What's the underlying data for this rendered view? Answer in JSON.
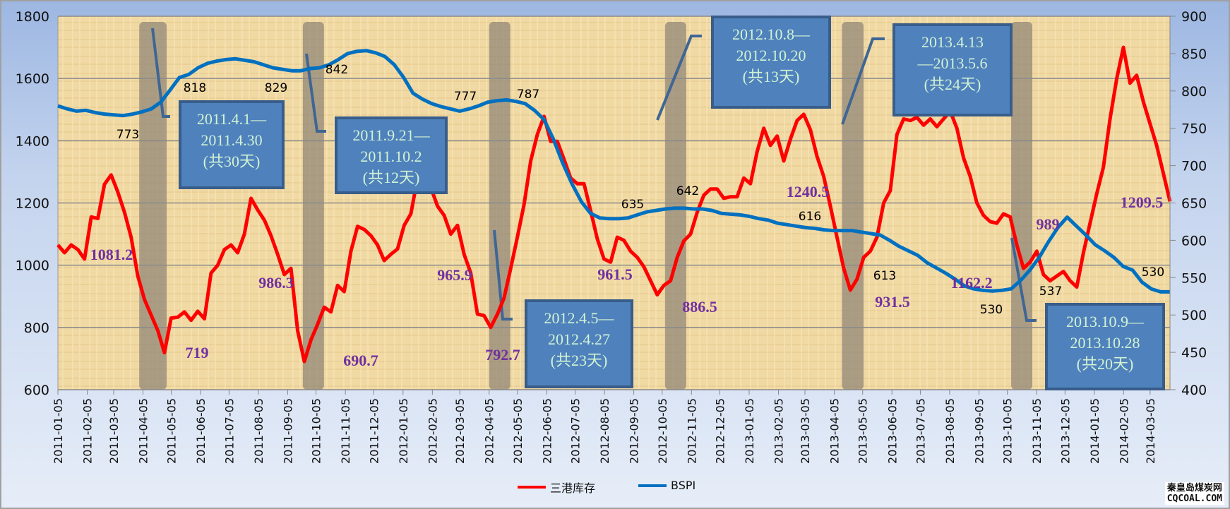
{
  "chart_data": {
    "type": "line",
    "title": "",
    "x_range": [
      "2011-01-05",
      "2014-03-26"
    ],
    "x_tick_labels": [
      "2011-01-05",
      "2011-02-05",
      "2011-03-05",
      "2011-04-05",
      "2011-05-05",
      "2011-06-05",
      "2011-07-05",
      "2011-08-05",
      "2011-09-05",
      "2011-10-05",
      "2011-11-05",
      "2011-12-05",
      "2012-01-05",
      "2012-02-05",
      "2012-03-05",
      "2012-04-05",
      "2012-05-05",
      "2012-06-05",
      "2012-07-05",
      "2012-08-05",
      "2012-09-05",
      "2012-10-05",
      "2012-11-05",
      "2012-12-05",
      "2013-01-05",
      "2013-02-05",
      "2013-03-05",
      "2013-04-05",
      "2013-05-05",
      "2013-06-05",
      "2013-07-05",
      "2013-08-05",
      "2013-09-05",
      "2013-10-05",
      "2013-11-05",
      "2013-12-05",
      "2014-01-05",
      "2014-02-05",
      "2014-03-05"
    ],
    "y_left": {
      "range": [
        600,
        1800
      ],
      "ticks": [
        "600",
        "800",
        "1000",
        "1200",
        "1400",
        "1600",
        "1800"
      ]
    },
    "y_right": {
      "range": [
        400,
        900
      ],
      "ticks": [
        "400",
        "450",
        "500",
        "550",
        "600",
        "650",
        "700",
        "750",
        "800",
        "850",
        "900"
      ]
    },
    "grid": true,
    "legend_position": "bottom",
    "series": [
      {
        "name": "三港库存",
        "axis": "left",
        "color": "#ff0000",
        "values": [
          1065,
          1040,
          1065,
          1050,
          1020,
          1155,
          1150,
          1260,
          1290,
          1235,
          1170,
          1090,
          965,
          890,
          840,
          790,
          719,
          830,
          833,
          850,
          823,
          852,
          828,
          975,
          1000,
          1050,
          1065,
          1040,
          1100,
          1215,
          1178,
          1145,
          1095,
          1035,
          970,
          990,
          790,
          690.7,
          760,
          810,
          865,
          850,
          935,
          915,
          1045,
          1125,
          1115,
          1095,
          1065,
          1015,
          1035,
          1052,
          1128,
          1165,
          1280,
          1262,
          1250,
          1190,
          1160,
          1100,
          1128,
          1035,
          975,
          843,
          838,
          800,
          843,
          895,
          990,
          1090,
          1195,
          1335,
          1420,
          1478,
          1398,
          1398,
          1340,
          1280,
          1262,
          1262,
          1175,
          1085,
          1020,
          1010,
          1090,
          1080,
          1045,
          1025,
          995,
          950,
          905,
          935,
          950,
          1025,
          1078,
          1100,
          1170,
          1225,
          1245,
          1245,
          1215,
          1220,
          1220,
          1280,
          1262,
          1365,
          1440,
          1385,
          1415,
          1335,
          1405,
          1465,
          1485,
          1435,
          1350,
          1285,
          1190,
          1090,
          990,
          920,
          955,
          1025,
          1045,
          1090,
          1200,
          1240,
          1420,
          1470,
          1465,
          1475,
          1450,
          1470,
          1445,
          1470,
          1495,
          1440,
          1345,
          1285,
          1200,
          1160,
          1140,
          1135,
          1165,
          1155,
          1065,
          990,
          1010,
          1045,
          970,
          950,
          965,
          980,
          950,
          930,
          1040,
          1135,
          1230,
          1315,
          1470,
          1600,
          1700,
          1585,
          1610,
          1525,
          1455,
          1385,
          1295,
          1205
        ]
      },
      {
        "name": "BSPI",
        "axis": "right",
        "color": "#0070c0",
        "values": [
          780,
          776,
          773,
          774,
          771,
          769,
          768,
          767,
          769,
          772,
          776,
          785,
          801,
          818,
          822,
          831,
          837,
          840,
          842,
          843,
          841,
          839,
          835,
          831,
          829,
          827,
          827,
          830,
          831,
          835,
          842,
          850,
          853,
          854,
          851,
          846,
          835,
          818,
          797,
          789,
          783,
          779,
          776,
          773,
          776,
          780,
          785,
          787,
          788,
          786,
          783,
          774,
          762,
          736,
          704,
          676,
          652,
          636,
          630,
          629,
          629,
          630,
          634,
          638,
          640,
          642,
          643,
          643,
          642,
          642,
          640,
          636,
          635,
          634,
          632,
          629,
          627,
          623,
          621,
          619,
          617,
          616,
          614,
          613,
          613,
          613,
          611,
          609,
          607,
          600,
          592,
          586,
          580,
          570,
          563,
          556,
          548,
          539,
          535,
          533,
          532,
          533,
          535,
          546,
          560,
          577,
          598,
          617,
          631,
          619,
          607,
          594,
          586,
          577,
          565,
          560,
          544,
          535,
          531,
          531
        ]
      }
    ],
    "shaded_periods": [
      {
        "start": "2011-04-01",
        "end": "2011-04-30",
        "label_lines": [
          "2011.4.1—",
          "2011.4.30",
          "(共30天)"
        ]
      },
      {
        "start": "2011-09-21",
        "end": "2011-10-02",
        "label_lines": [
          "2011.9.21—",
          "2011.10.2",
          "(共12天)"
        ]
      },
      {
        "start": "2012-04-05",
        "end": "2012-04-27",
        "label_lines": [
          "2012.4.5—",
          "2012.4.27",
          "(共23天)"
        ]
      },
      {
        "start": "2012-10-08",
        "end": "2012-10-20",
        "label_lines": [
          "2012.10.8—",
          "2012.10.20",
          "(共13天)"
        ]
      },
      {
        "start": "2013-04-13",
        "end": "2013-05-06",
        "label_lines": [
          "2013.4.13",
          "—2013.5.6",
          "(共24天)"
        ]
      },
      {
        "start": "2013-10-09",
        "end": "2013-10-28",
        "label_lines": [
          "2013.10.9—",
          "2013.10.28",
          "(共20天)"
        ]
      }
    ],
    "bspi_labels": [
      "773",
      "818",
      "829",
      "842",
      "777",
      "787",
      "635",
      "642",
      "616",
      "613",
      "530",
      "537",
      "530"
    ],
    "inventory_labels": [
      "1081.2",
      "719",
      "986.3",
      "690.7",
      "965.9",
      "792.7",
      "961.5",
      "886.5",
      "1240.5",
      "931.5",
      "1162.2",
      "989",
      "1209.5"
    ]
  },
  "legend": {
    "inventory": "三港库存",
    "bspi": "BSPI"
  },
  "watermark": {
    "line1": "秦皇岛煤炭网",
    "line2": "CQCOAL.COM"
  }
}
